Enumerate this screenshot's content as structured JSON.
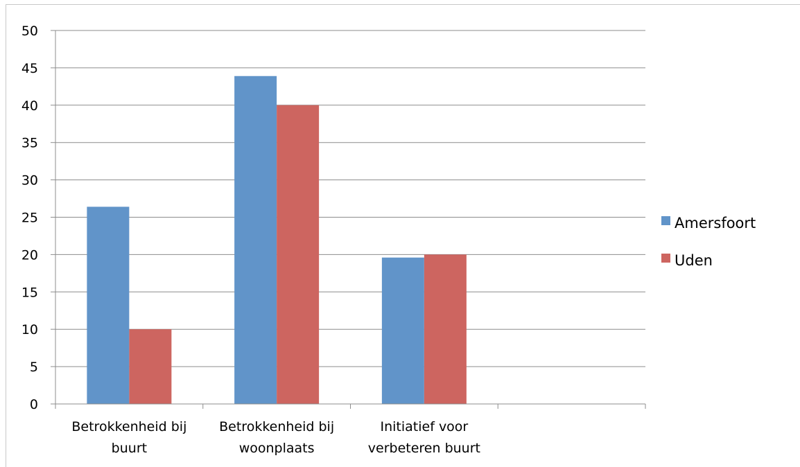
{
  "chart_data": {
    "type": "bar",
    "categories": [
      [
        "Betrokkenheid bij",
        "buurt"
      ],
      [
        "Betrokkenheid bij",
        "woonplaats"
      ],
      [
        "Initiatief voor",
        "verbeteren buurt"
      ],
      [
        ""
      ]
    ],
    "series": [
      {
        "name": "Amersfoort",
        "color": "#6194c9",
        "values": [
          26.4,
          43.9,
          19.6,
          null
        ]
      },
      {
        "name": "Uden",
        "color": "#cd6560",
        "values": [
          10,
          40,
          20,
          null
        ]
      }
    ],
    "ylim": [
      0,
      50
    ],
    "yticks": [
      0,
      5,
      10,
      15,
      20,
      25,
      30,
      35,
      40,
      45,
      50
    ],
    "grid": true,
    "legend": "right",
    "title": "",
    "xlabel": "",
    "ylabel": ""
  }
}
